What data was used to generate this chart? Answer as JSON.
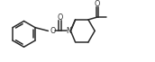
{
  "bg_color": "white",
  "line_color": "#2a2a2a",
  "line_width": 1.1,
  "font_size": 5.8,
  "figsize": [
    1.72,
    0.69
  ],
  "dpi": 100,
  "xlim": [
    0,
    17.2
  ],
  "ylim": [
    0,
    6.9
  ]
}
